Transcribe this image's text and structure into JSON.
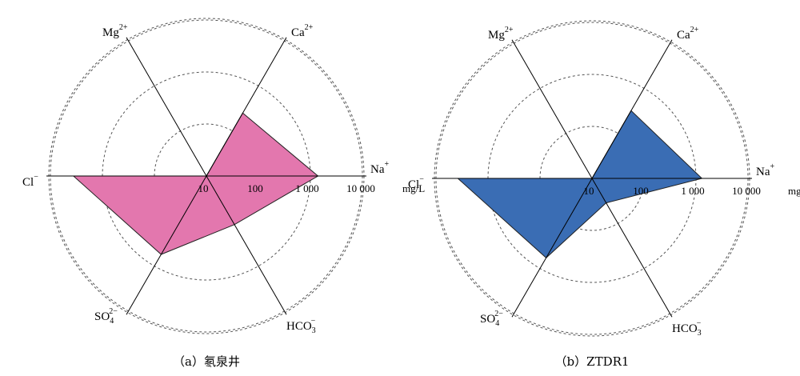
{
  "chart_data": [
    {
      "type": "radar",
      "caption": "（a）氡泉井",
      "scale": "log",
      "rings": [
        10,
        100,
        1000,
        10000
      ],
      "tick_labels": [
        "10",
        "100",
        "1 000",
        "10 000"
      ],
      "unit": "mg/L",
      "axes": [
        {
          "base": "Na",
          "charge": "+"
        },
        {
          "base": "Ca",
          "charge": "2+"
        },
        {
          "base": "Mg",
          "charge": "2+"
        },
        {
          "base": "Cl",
          "charge": "−"
        },
        {
          "base": "SO",
          "sub": "4",
          "charge": "2−"
        },
        {
          "base": "HCO",
          "sub": "3",
          "charge": "−"
        }
      ],
      "series": [
        {
          "values": [
            1400,
            250,
            10,
            3600,
            550,
            120
          ],
          "color": "#e377ae"
        }
      ]
    },
    {
      "type": "radar",
      "caption": "（b）ZTDR1",
      "scale": "log",
      "rings": [
        10,
        100,
        1000,
        10000
      ],
      "tick_labels": [
        "10",
        "100",
        "1 000",
        "10 000"
      ],
      "unit": "mg/L",
      "axes": [
        {
          "base": "Na",
          "charge": "+"
        },
        {
          "base": "Ca",
          "charge": "2+"
        },
        {
          "base": "Mg",
          "charge": "2+"
        },
        {
          "base": "Cl",
          "charge": "−"
        },
        {
          "base": "SO",
          "sub": "4",
          "charge": "2−"
        },
        {
          "base": "HCO",
          "sub": "3",
          "charge": "−"
        }
      ],
      "series": [
        {
          "values": [
            1300,
            320,
            10,
            3800,
            580,
            35
          ],
          "color": "#3a6db4"
        }
      ]
    }
  ]
}
